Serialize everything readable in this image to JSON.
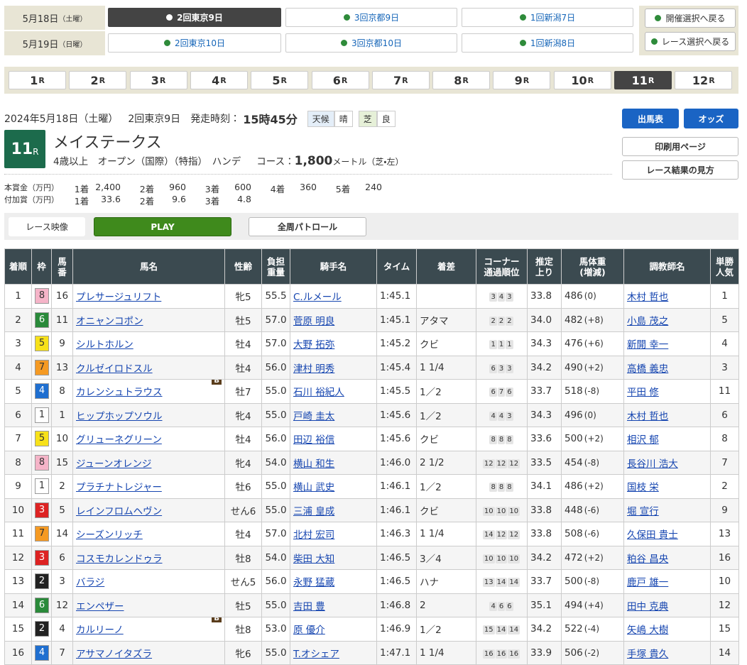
{
  "nav": {
    "dates": [
      {
        "date": "5月18日",
        "day": "（土曜）",
        "meetings": [
          "2回東京9日",
          "3回京都9日",
          "1回新潟7日"
        ]
      },
      {
        "date": "5月19日",
        "day": "（日曜）",
        "meetings": [
          "2回東京10日",
          "3回京都10日",
          "1回新潟8日"
        ]
      }
    ],
    "back_buttons": [
      "開催選択へ戻る",
      "レース選択へ戻る"
    ]
  },
  "race_tabs": {
    "numbers": [
      "1",
      "2",
      "3",
      "4",
      "5",
      "6",
      "7",
      "8",
      "9",
      "10",
      "11",
      "12"
    ],
    "suffix": "R"
  },
  "race": {
    "date": "2024年5月18日（土曜）",
    "meeting": "2回東京9日",
    "start_label": "発走時刻：",
    "start_time": "15時45分",
    "weather_label": "天候",
    "weather": "晴",
    "surface_label": "芝",
    "going": "良",
    "number": "11",
    "suffix": "R",
    "name": "メイステークス",
    "conditions": "4歳以上　オープン（国際）（特指）　ハンデ",
    "course_label": "コース：",
    "distance": "1,800",
    "distance_unit": "メートル（芝・左）"
  },
  "buttons": {
    "entries": "出馬表",
    "odds": "オッズ",
    "print": "印刷用ページ",
    "guide": "レース結果の見方"
  },
  "prize": [
    {
      "label": "本賞金（万円）",
      "items": [
        {
          "place": "1着",
          "amount": "2,400"
        },
        {
          "place": "2着",
          "amount": "960"
        },
        {
          "place": "3着",
          "amount": "600"
        },
        {
          "place": "4着",
          "amount": "360"
        },
        {
          "place": "5着",
          "amount": "240"
        }
      ]
    },
    {
      "label": "付加賞（万円）",
      "items": [
        {
          "place": "1着",
          "amount": "33.6"
        },
        {
          "place": "2着",
          "amount": "9.6"
        },
        {
          "place": "3着",
          "amount": "4.8"
        }
      ]
    }
  ],
  "video": {
    "label": "レース映像",
    "play": "PLAY",
    "patrol": "全周パトロール"
  },
  "table": {
    "headers": [
      [
        "着順"
      ],
      [
        "枠"
      ],
      [
        "馬",
        "番"
      ],
      [
        "馬名"
      ],
      [
        "性齢"
      ],
      [
        "負担",
        "重量"
      ],
      [
        "騎手名"
      ],
      [
        "タイム"
      ],
      [
        "着差"
      ],
      [
        "コーナー",
        "通過順位"
      ],
      [
        "推定",
        "上り"
      ],
      [
        "馬体重",
        "(増減)"
      ],
      [
        "調教師名"
      ],
      [
        "単勝",
        "人気"
      ]
    ],
    "rows": [
      [
        "1",
        "8",
        "16",
        "プレサージュリフト",
        null,
        "牝5",
        "55.5",
        "C.ルメール",
        "1:45.1",
        "",
        [
          "3",
          "4",
          "3"
        ],
        "33.8",
        "486",
        "(0)",
        "木村 哲也",
        "1"
      ],
      [
        "2",
        "6",
        "11",
        "オニャンコポン",
        null,
        "牡5",
        "57.0",
        "菅原 明良",
        "1:45.1",
        "アタマ",
        [
          "2",
          "2",
          "2"
        ],
        "34.0",
        "482",
        "(+8)",
        "小島 茂之",
        "5"
      ],
      [
        "3",
        "5",
        "9",
        "シルトホルン",
        null,
        "牡4",
        "57.0",
        "大野 拓弥",
        "1:45.2",
        "クビ",
        [
          "1",
          "1",
          "1"
        ],
        "34.3",
        "476",
        "(+6)",
        "新開 幸一",
        "4"
      ],
      [
        "4",
        "7",
        "13",
        "クルゼイロドスル",
        null,
        "牡4",
        "56.0",
        "津村 明秀",
        "1:45.4",
        "1 1/4",
        [
          "6",
          "3",
          "3"
        ],
        "34.2",
        "490",
        "(+2)",
        "高橋 義忠",
        "3"
      ],
      [
        "5",
        "4",
        "8",
        "カレンシュトラウス",
        "B",
        "牡7",
        "55.0",
        "石川 裕紀人",
        "1:45.5",
        "1／2",
        [
          "6",
          "7",
          "6"
        ],
        "33.7",
        "518",
        "(-8)",
        "平田 修",
        "11"
      ],
      [
        "6",
        "1",
        "1",
        "ヒップホップソウル",
        null,
        "牝4",
        "55.0",
        "戸崎 圭太",
        "1:45.6",
        "1／2",
        [
          "4",
          "4",
          "3"
        ],
        "34.3",
        "496",
        "(0)",
        "木村 哲也",
        "6"
      ],
      [
        "7",
        "5",
        "10",
        "グリューネグリーン",
        null,
        "牡4",
        "56.0",
        "田辺 裕信",
        "1:45.6",
        "クビ",
        [
          "8",
          "8",
          "8"
        ],
        "33.6",
        "500",
        "(+2)",
        "相沢 郁",
        "8"
      ],
      [
        "8",
        "8",
        "15",
        "ジューンオレンジ",
        null,
        "牝4",
        "54.0",
        "横山 和生",
        "1:46.0",
        "2 1/2",
        [
          "12",
          "12",
          "12"
        ],
        "33.5",
        "454",
        "(-8)",
        "長谷川 浩大",
        "7"
      ],
      [
        "9",
        "1",
        "2",
        "プラチナトレジャー",
        null,
        "牡6",
        "55.0",
        "横山 武史",
        "1:46.1",
        "1／2",
        [
          "8",
          "8",
          "8"
        ],
        "34.1",
        "486",
        "(+2)",
        "国枝 栄",
        "2"
      ],
      [
        "10",
        "3",
        "5",
        "レインフロムヘヴン",
        null,
        "せん6",
        "55.0",
        "三浦 皇成",
        "1:46.1",
        "クビ",
        [
          "10",
          "10",
          "10"
        ],
        "33.8",
        "448",
        "(-6)",
        "堀 宣行",
        "9"
      ],
      [
        "11",
        "7",
        "14",
        "シーズンリッチ",
        null,
        "牡4",
        "57.0",
        "北村 宏司",
        "1:46.3",
        "1 1/4",
        [
          "14",
          "12",
          "12"
        ],
        "33.8",
        "508",
        "(-6)",
        "久保田 貴士",
        "13"
      ],
      [
        "12",
        "3",
        "6",
        "コスモカレンドゥラ",
        null,
        "牡8",
        "54.0",
        "柴田 大知",
        "1:46.5",
        "3／4",
        [
          "10",
          "10",
          "10"
        ],
        "34.2",
        "472",
        "(+2)",
        "粕谷 昌央",
        "16"
      ],
      [
        "13",
        "2",
        "3",
        "バラジ",
        null,
        "せん5",
        "56.0",
        "永野 猛蔵",
        "1:46.5",
        "ハナ",
        [
          "13",
          "14",
          "14"
        ],
        "33.7",
        "500",
        "(-8)",
        "鹿戸 雄一",
        "10"
      ],
      [
        "14",
        "6",
        "12",
        "エンペザー",
        null,
        "牡5",
        "55.0",
        "吉田 豊",
        "1:46.8",
        "2",
        [
          "4",
          "6",
          "6"
        ],
        "35.1",
        "494",
        "(+4)",
        "田中 克典",
        "12"
      ],
      [
        "15",
        "2",
        "4",
        "カルリーノ",
        "B",
        "牡8",
        "53.0",
        "原 優介",
        "1:46.9",
        "1／2",
        [
          "15",
          "14",
          "14"
        ],
        "34.2",
        "522",
        "(-4)",
        "矢嶋 大樹",
        "15"
      ],
      [
        "16",
        "4",
        "7",
        "アサマノイタズラ",
        null,
        "牝6",
        "55.0",
        "T.オシェア",
        "1:47.1",
        "1 1/4",
        [
          "16",
          "16",
          "16"
        ],
        "33.9",
        "506",
        "(-2)",
        "手塚 貴久",
        "14"
      ]
    ]
  }
}
